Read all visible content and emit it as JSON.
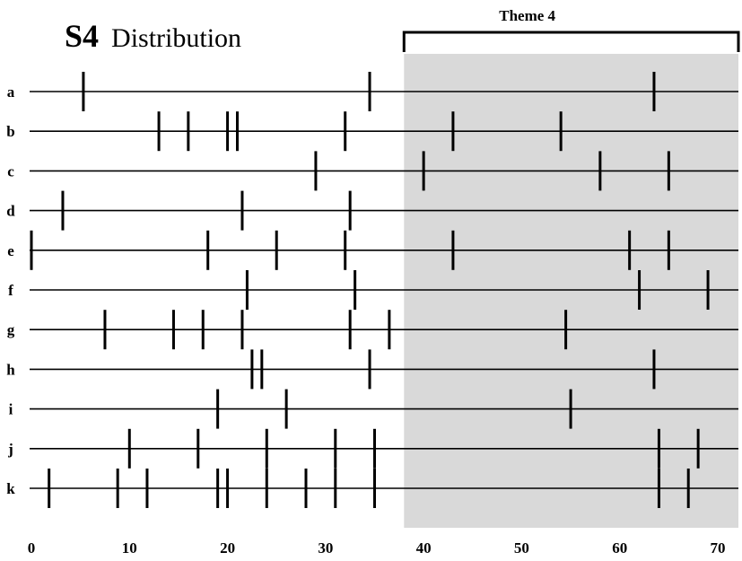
{
  "chart_data": {
    "type": "scatter",
    "title": "S4",
    "subtitle": "Distribution",
    "xlim": [
      0,
      72
    ],
    "x_ticks": [
      "0",
      "10",
      "20",
      "30",
      "40",
      "50",
      "60",
      "70"
    ],
    "x_tick_values": [
      0,
      10,
      20,
      30,
      40,
      50,
      60,
      70
    ],
    "highlight": {
      "label": "Theme 4",
      "range": [
        38,
        72
      ],
      "color": "#d9d9d9"
    },
    "series": [
      {
        "name": "a",
        "x": [
          5.3,
          34.5,
          63.5
        ]
      },
      {
        "name": "b",
        "x": [
          13,
          16,
          20,
          21,
          32,
          43,
          54
        ]
      },
      {
        "name": "c",
        "x": [
          29,
          40,
          58,
          65
        ]
      },
      {
        "name": "d",
        "x": [
          3.2,
          21.5,
          32.5
        ]
      },
      {
        "name": "e",
        "x": [
          0,
          18,
          25,
          32,
          43,
          61,
          65
        ]
      },
      {
        "name": "f",
        "x": [
          22,
          33,
          62,
          69
        ]
      },
      {
        "name": "g",
        "x": [
          7.5,
          14.5,
          17.5,
          21.5,
          32.5,
          36.5,
          54.5
        ]
      },
      {
        "name": "h",
        "x": [
          22.5,
          23.5,
          34.5,
          63.5
        ]
      },
      {
        "name": "i",
        "x": [
          19,
          26,
          55
        ]
      },
      {
        "name": "j",
        "x": [
          10,
          17,
          24,
          31,
          35,
          64,
          68
        ]
      },
      {
        "name": "k",
        "x": [
          1.8,
          8.8,
          11.8,
          19,
          20,
          24,
          28,
          31,
          35,
          64,
          67
        ]
      }
    ]
  }
}
